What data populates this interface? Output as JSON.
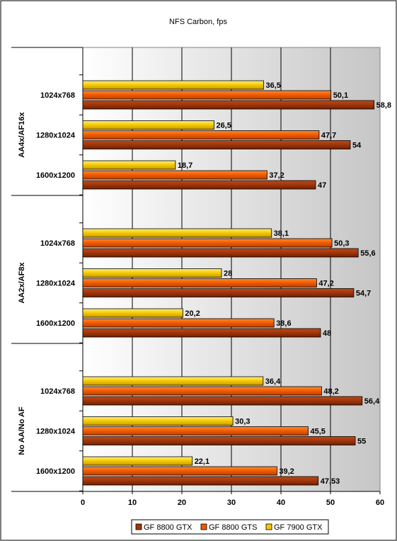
{
  "chart_data": {
    "type": "bar",
    "orientation": "horizontal",
    "title": "NFS Carbon, fps",
    "xlabel": "",
    "ylabel": "",
    "xlim": [
      0,
      60
    ],
    "xticks": [
      0,
      10,
      20,
      30,
      40,
      50,
      60
    ],
    "grid": true,
    "legend_position": "bottom",
    "series": [
      {
        "name": "GF 8800 GTX",
        "color": "#A0350A"
      },
      {
        "name": "GF 8800 GTS",
        "color": "#F05A00"
      },
      {
        "name": "GF 7900 GTX",
        "color": "#F5C800"
      }
    ],
    "groups": [
      {
        "label": "AA4x/AF16x",
        "categories": [
          {
            "label": "1600x1200",
            "values": [
              47,
              37.2,
              18.7
            ],
            "value_labels": [
              "47",
              "37,2",
              "18,7"
            ]
          },
          {
            "label": "1280x1024",
            "values": [
              54,
              47.7,
              26.5
            ],
            "value_labels": [
              "54",
              "47,7",
              "26,5"
            ]
          },
          {
            "label": "1024x768",
            "values": [
              58.8,
              50.1,
              36.5
            ],
            "value_labels": [
              "58,8",
              "50,1",
              "36,5"
            ]
          }
        ]
      },
      {
        "label": "AA2x/AF8x",
        "categories": [
          {
            "label": "1600x1200",
            "values": [
              48,
              38.6,
              20.2
            ],
            "value_labels": [
              "48",
              "38,6",
              "20,2"
            ]
          },
          {
            "label": "1280x1024",
            "values": [
              54.7,
              47.2,
              28
            ],
            "value_labels": [
              "54,7",
              "47,2",
              "28"
            ]
          },
          {
            "label": "1024x768",
            "values": [
              55.6,
              50.3,
              38.1
            ],
            "value_labels": [
              "55,6",
              "50,3",
              "38,1"
            ]
          }
        ]
      },
      {
        "label": "No AA/No AF",
        "categories": [
          {
            "label": "1600x1200",
            "values": [
              47.53,
              39.2,
              22.1
            ],
            "value_labels": [
              "47,53",
              "39,2",
              "22,1"
            ]
          },
          {
            "label": "1280x1024",
            "values": [
              55,
              45.5,
              30.3
            ],
            "value_labels": [
              "55",
              "45,5",
              "30,3"
            ]
          },
          {
            "label": "1024x768",
            "values": [
              56.4,
              48.2,
              36.4
            ],
            "value_labels": [
              "56,4",
              "48,2",
              "36,4"
            ]
          }
        ]
      }
    ]
  }
}
